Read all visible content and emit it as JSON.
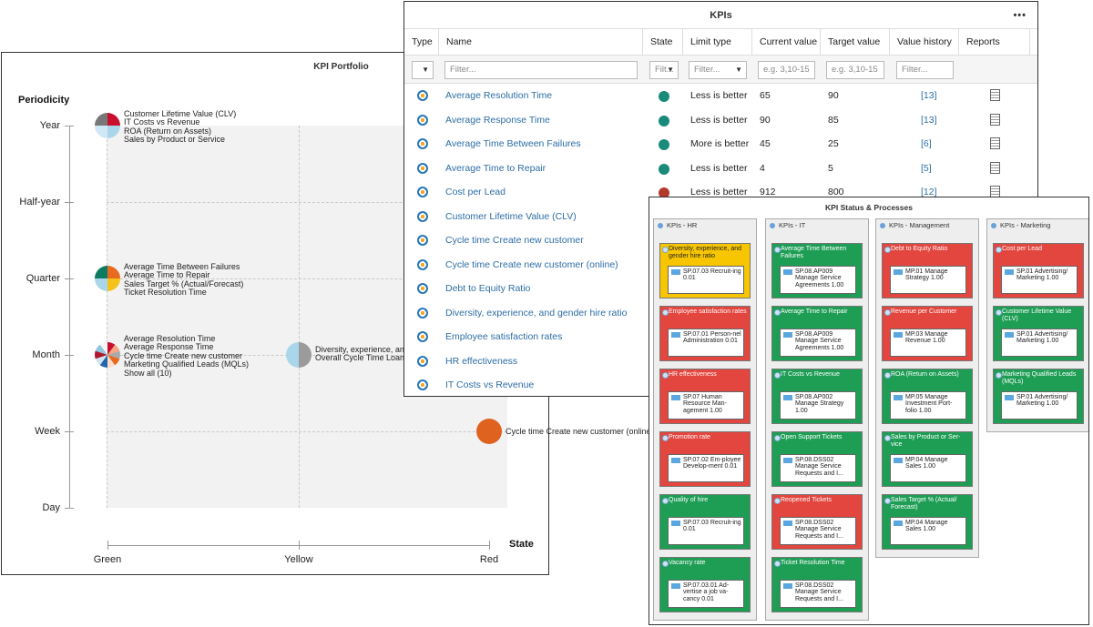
{
  "portfolio": {
    "title": "KPI Portfolio",
    "y_axis_title": "Periodicity",
    "x_axis_title": "State",
    "y_labels": [
      "Year",
      "Half-year",
      "Quarter",
      "Month",
      "Week",
      "Day"
    ],
    "x_labels": [
      "Green",
      "Yellow",
      "Red"
    ],
    "bubbles": [
      {
        "labels": [
          "Customer Lifetime Value (CLV)",
          "IT Costs vs Revenue",
          "ROA (Return on Assets)",
          "Sales by Product or Service"
        ]
      },
      {
        "labels": [
          "Average Time Between Failures",
          "Average Time to Repair",
          "Sales Target % (Actual/Forecast)",
          "Ticket Resolution Time"
        ]
      },
      {
        "labels": [
          "Average Resolution Time",
          "Average Response Time",
          "Cycle time Create new customer",
          "Marketing Qualified Leads (MQLs)",
          "Show all (10)"
        ]
      },
      {
        "labels": [
          "Diversity, experience, and",
          "Overall Cycle Time Loan a"
        ]
      },
      {
        "labels": [
          "Cycle time Create new customer (online)"
        ]
      }
    ]
  },
  "kpis": {
    "title": "KPIs",
    "more": "•••",
    "columns": [
      "Type",
      "Name",
      "State",
      "Limit type",
      "Current value",
      "Target value",
      "Value history",
      "Reports"
    ],
    "filters": {
      "name": "Filter...",
      "state": "Filt...",
      "limit": "Filter...",
      "current": "e.g. 3,10-15",
      "target": "e.g. 3,10-15",
      "history": "Filter..."
    },
    "rows": [
      {
        "name": "Average Resolution Time",
        "state": "#1a8a7a",
        "limit": "Less is better",
        "current": "65",
        "target": "90",
        "history": "[13]"
      },
      {
        "name": "Average Response Time",
        "state": "#1a8a7a",
        "limit": "Less is better",
        "current": "90",
        "target": "85",
        "history": "[13]"
      },
      {
        "name": "Average Time Between Failures",
        "state": "#1a8a7a",
        "limit": "More is better",
        "current": "45",
        "target": "25",
        "history": "[6]"
      },
      {
        "name": "Average Time to Repair",
        "state": "#1a8a7a",
        "limit": "Less is better",
        "current": "4",
        "target": "5",
        "history": "[5]"
      },
      {
        "name": "Cost per Lead",
        "state": "#b23a2c",
        "limit": "Less is better",
        "current": "912",
        "target": "800",
        "history": "[12]"
      },
      {
        "name": "Customer Lifetime Value (CLV)"
      },
      {
        "name": "Cycle time Create new customer"
      },
      {
        "name": "Cycle time Create new customer (online)"
      },
      {
        "name": "Debt to Equity Ratio"
      },
      {
        "name": "Diversity, experience, and gender hire ratio"
      },
      {
        "name": "Employee satisfaction rates"
      },
      {
        "name": "HR effectiveness"
      },
      {
        "name": "IT Costs vs Revenue"
      }
    ]
  },
  "status": {
    "title": "KPI Status & Processes",
    "lanes": [
      {
        "title": "KPIs - HR",
        "cards": [
          {
            "title": "Diversity, experience, and gender hire ratio",
            "color": "yellow",
            "process": "SP.07.03 Recruit-ing 0.01"
          },
          {
            "title": "Employee satisfaction rates",
            "color": "red",
            "process": "SP.07.01 Person-nel Administration 0.01"
          },
          {
            "title": "HR effectiveness",
            "color": "red",
            "process": "SP.07 Human Resource Man-agement 1.00"
          },
          {
            "title": "Promotion rate",
            "color": "red",
            "process": "SP.07.02 Em-ployee Develop-ment 0.01"
          },
          {
            "title": "Quality of hire",
            "color": "green",
            "process": "SP.07.03 Recruit-ing 0.01"
          },
          {
            "title": "Vacancy rate",
            "color": "green",
            "process": "SP.07.03.01 Ad-vertise a job va-cancy 0.01"
          }
        ]
      },
      {
        "title": "KPIs - IT",
        "cards": [
          {
            "title": "Average Time Between Failures",
            "color": "green",
            "process": "SP.08.AP009 Manage Service Agreements 1.00"
          },
          {
            "title": "Average Time to Repair",
            "color": "green",
            "process": "SP.08.AP009 Manage Service Agreements 1.00"
          },
          {
            "title": "IT Costs vs Revenue",
            "color": "green",
            "process": "SP.08.AP002 Manage Strategy 1.00"
          },
          {
            "title": "Open Support Tickets",
            "color": "green",
            "process": "SP.08.DSS02 Manage Service Requests and I..."
          },
          {
            "title": "Reopened Tickets",
            "color": "red",
            "process": "SP.08.DSS02 Manage Service Requests and I..."
          },
          {
            "title": "Ticket Resolution Time",
            "color": "green",
            "process": "SP.08.DSS02 Manage Service Requests and I..."
          }
        ]
      },
      {
        "title": "KPIs - Management",
        "cards": [
          {
            "title": "Debt to Equity Ratio",
            "color": "red",
            "process": "MP.01 Manage Strategy 1.00"
          },
          {
            "title": "Revenue per Customer",
            "color": "red",
            "process": "MP.03 Manage Revenue 1.00"
          },
          {
            "title": "ROA (Return on Assets)",
            "color": "green",
            "process": "MP.05 Manage Investment Port-folio 1.00"
          },
          {
            "title": "Sales by Product or Ser-vice",
            "color": "green",
            "process": "MP.04 Manage Sales 1.00"
          },
          {
            "title": "Sales Target % (Actual/ Forecast)",
            "color": "green",
            "process": "MP.04 Manage Sales 1.00"
          }
        ]
      },
      {
        "title": "KPIs - Marketing",
        "cards": [
          {
            "title": "Cost per Lead",
            "color": "red",
            "process": "SP.01 Advertising/ Marketing 1.00"
          },
          {
            "title": "Customer Lifetime Value (CLV)",
            "color": "green",
            "process": "SP.01 Advertising/ Marketing 1.00"
          },
          {
            "title": "Marketing Qualified Leads (MQLs)",
            "color": "green",
            "process": "SP.01 Advertising/ Marketing 1.00"
          }
        ]
      }
    ]
  }
}
